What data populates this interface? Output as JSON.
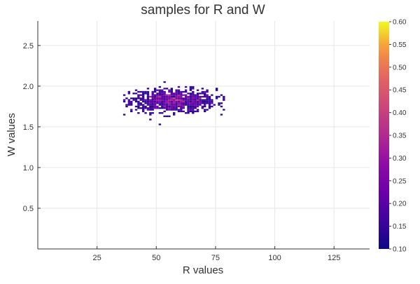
{
  "chart_data": {
    "type": "heatmap",
    "title": "samples for R and W",
    "xlabel": "R values",
    "ylabel": "W values",
    "xlim": [
      0,
      140
    ],
    "ylim": [
      0,
      2.8
    ],
    "xticks": [
      25,
      50,
      75,
      100,
      125
    ],
    "xtick_labels": [
      "25",
      "50",
      "75",
      "100",
      "125"
    ],
    "yticks": [
      0.5,
      1.0,
      1.5,
      2.0,
      2.5
    ],
    "ytick_labels": [
      "0.5",
      "1.0",
      "1.5",
      "2.0",
      "2.5"
    ],
    "grid": true,
    "colormap": "plasma",
    "colorbar": {
      "min": 0.1,
      "max": 0.6,
      "ticks": [
        0.1,
        0.15,
        0.2,
        0.25,
        0.3,
        0.35,
        0.4,
        0.45,
        0.5,
        0.55,
        0.6
      ],
      "tick_labels": [
        "0.10",
        "0.15",
        "0.20",
        "0.25",
        "0.30",
        "0.35",
        "0.40",
        "0.45",
        "0.50",
        "0.55",
        "0.60"
      ]
    },
    "samples": {
      "center": [
        57,
        1.82
      ],
      "spread": [
        9,
        0.07
      ],
      "r_range": [
        36,
        79
      ],
      "w_range": [
        1.51,
        2.07
      ]
    }
  }
}
